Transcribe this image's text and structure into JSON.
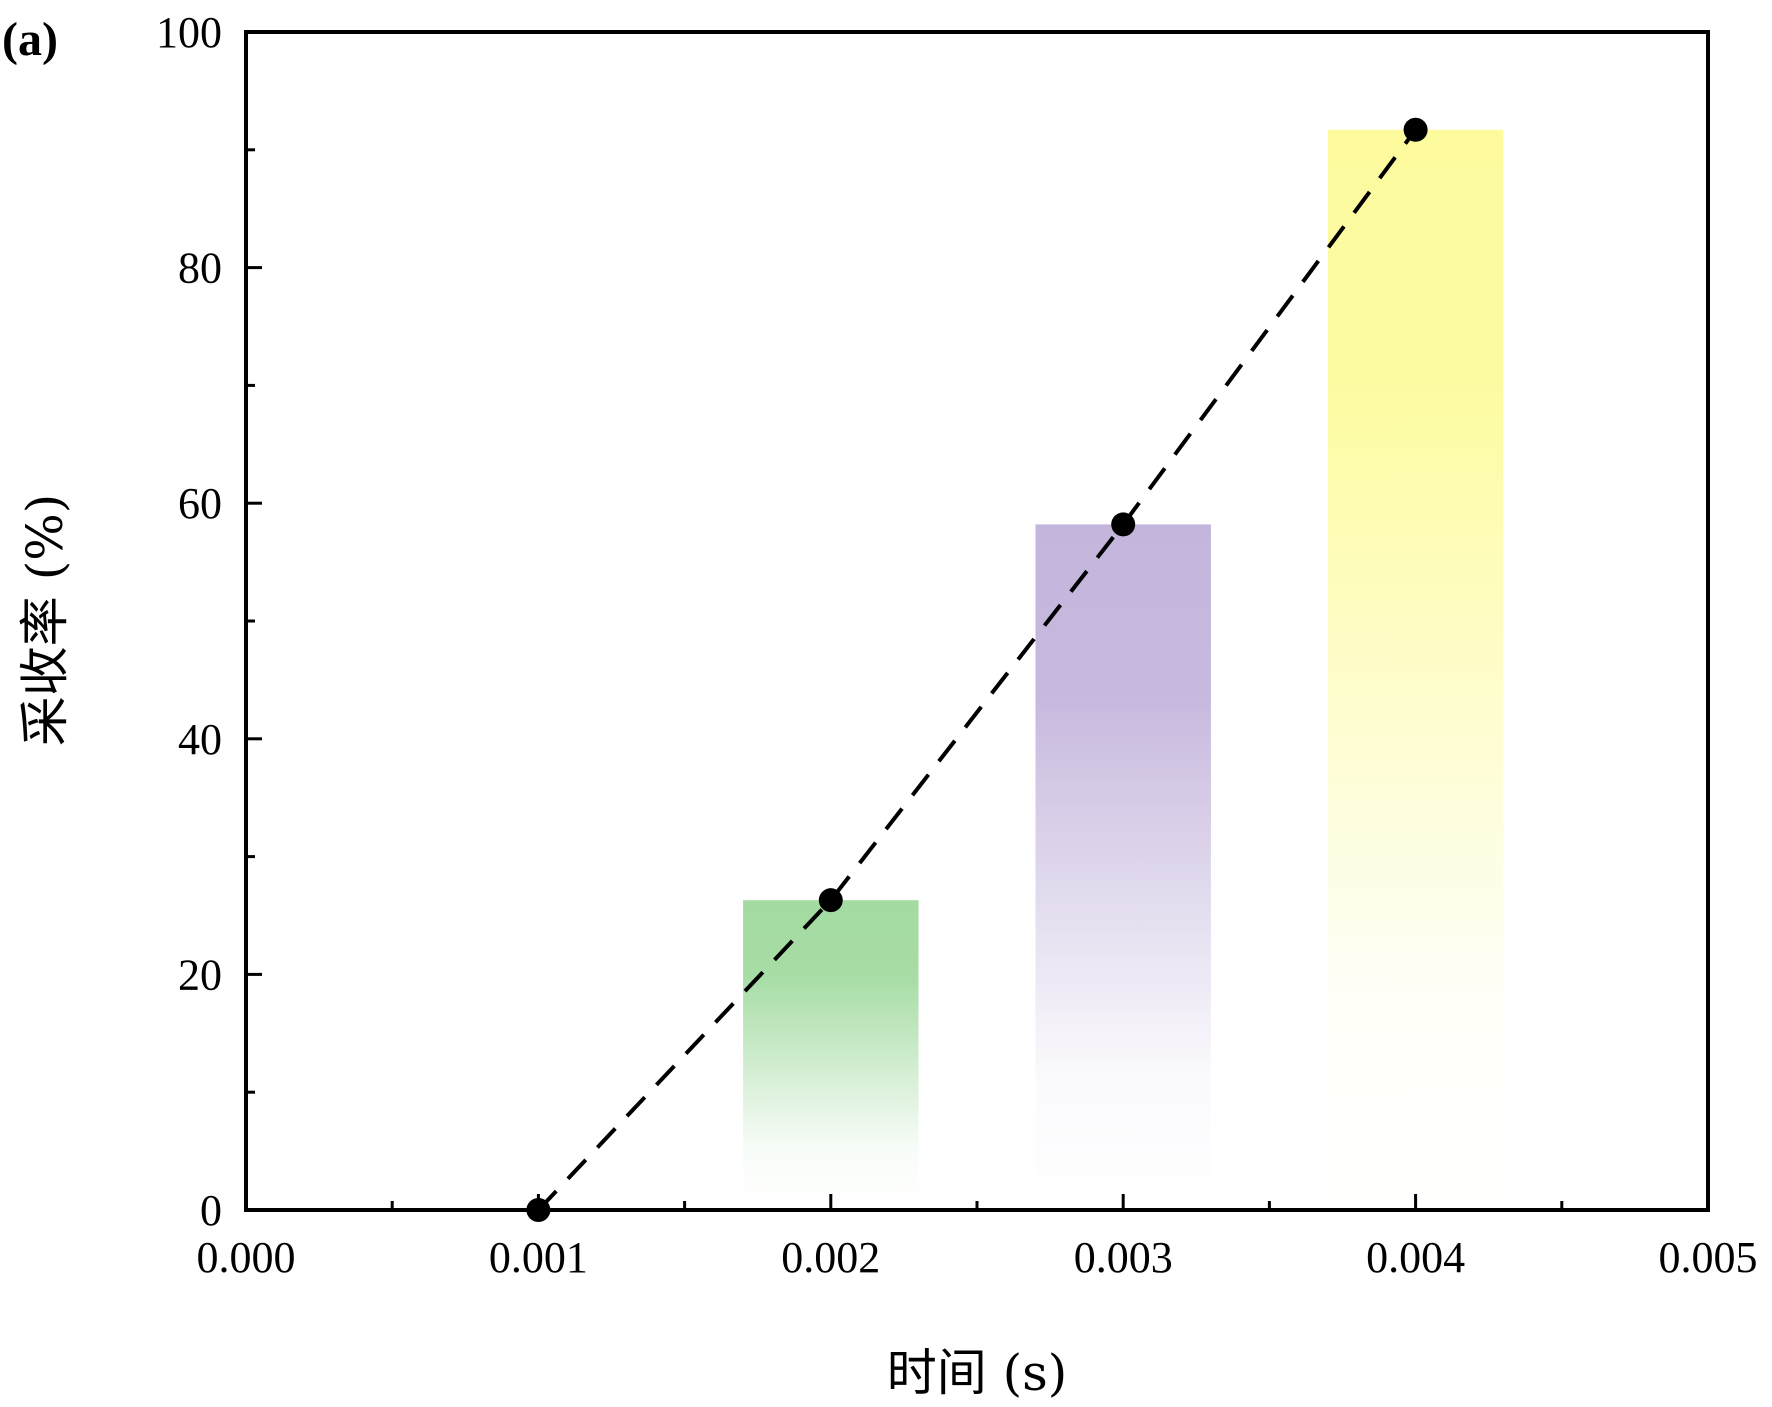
{
  "chart_data": {
    "type": "bar",
    "panel_label": "(a)",
    "title": "",
    "xlabel": "时间 (s)",
    "ylabel": "采收率 (%)",
    "xlim": [
      0.0,
      0.005
    ],
    "ylim": [
      0,
      100
    ],
    "x_ticks": [
      "0.000",
      "0.001",
      "0.002",
      "0.003",
      "0.004",
      "0.005"
    ],
    "x_tick_values": [
      0.0,
      0.001,
      0.002,
      0.003,
      0.004,
      0.005
    ],
    "y_ticks": [
      "0",
      "20",
      "40",
      "60",
      "80",
      "100"
    ],
    "y_tick_values": [
      0,
      20,
      40,
      60,
      80,
      100
    ],
    "grid": false,
    "legend": "none",
    "bars": [
      {
        "x": 0.002,
        "value": 26.3,
        "width": 0.0006,
        "color": "#a3dba1"
      },
      {
        "x": 0.003,
        "value": 58.2,
        "width": 0.0006,
        "color": "#c4b5dc"
      },
      {
        "x": 0.004,
        "value": 91.7,
        "width": 0.0006,
        "color": "#fdfb9e"
      }
    ],
    "line": {
      "style": "dashed",
      "color": "#000000",
      "x": [
        0.001,
        0.002,
        0.003,
        0.004
      ],
      "y": [
        0,
        26.3,
        58.2,
        91.7
      ]
    }
  }
}
